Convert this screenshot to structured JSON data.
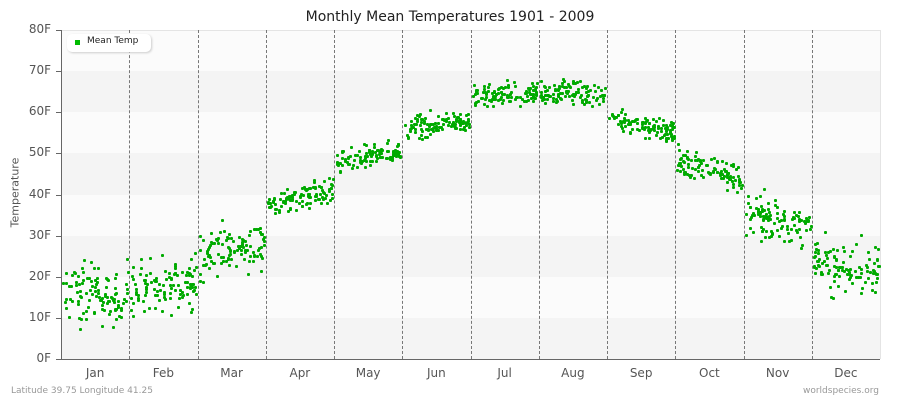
{
  "title": "Monthly Mean Temperatures 1901 - 2009",
  "footer": {
    "location": "Latitude 39.75 Longitude 41.25",
    "source": "worldspecies.org"
  },
  "legend": {
    "label": "Mean Temp",
    "color": "#00bb00"
  },
  "colors": {
    "point": "#00aa00",
    "band_light": "#fbfbfb",
    "band_dark": "#f4f4f4",
    "axis": "#666666"
  },
  "chart_data": {
    "type": "scatter",
    "title": "Monthly Mean Temperatures 1901 - 2009",
    "xlabel": "",
    "ylabel": "Temperature",
    "ylim": [
      0,
      80
    ],
    "yticks": [
      "0F",
      "10F",
      "20F",
      "30F",
      "40F",
      "50F",
      "60F",
      "70F",
      "80F"
    ],
    "categories": [
      "Jan",
      "Feb",
      "Mar",
      "Apr",
      "May",
      "Jun",
      "Jul",
      "Aug",
      "Sep",
      "Oct",
      "Nov",
      "Dec"
    ],
    "series": [
      {
        "name": "Mean Temp",
        "points_per_month": 109,
        "monthly_mean_F": [
          15.5,
          17.5,
          26.5,
          39.5,
          49.0,
          57.0,
          64.5,
          65.0,
          57.0,
          46.0,
          33.5,
          21.5
        ],
        "monthly_min_F": [
          1.5,
          4.5,
          13.0,
          34.0,
          44.0,
          52.0,
          60.5,
          61.0,
          51.5,
          38.5,
          23.5,
          9.0
        ],
        "monthly_max_F": [
          29.5,
          29.5,
          35.0,
          46.0,
          54.5,
          63.0,
          70.5,
          71.5,
          63.0,
          53.0,
          41.5,
          32.5
        ]
      }
    ],
    "grid": {
      "horizontal_bands": true,
      "vertical_dashed_month_dividers": true
    },
    "legend_position": "top-left"
  }
}
